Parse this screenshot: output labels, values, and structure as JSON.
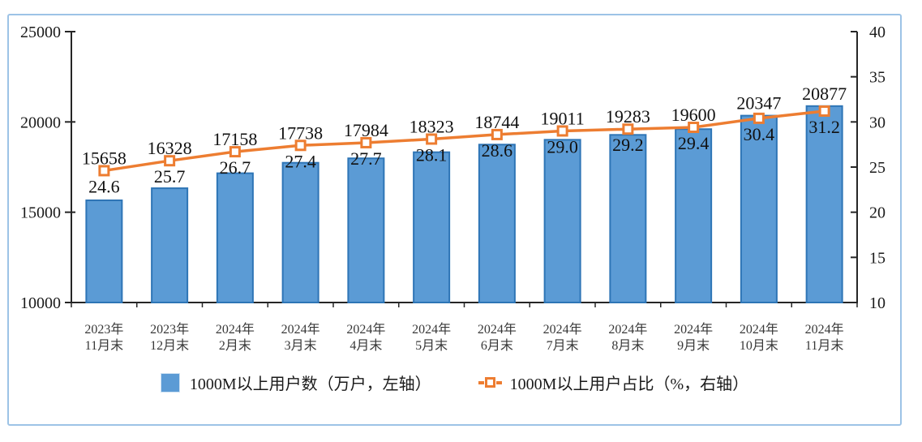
{
  "frame": {
    "border_color": "#9DC3E6",
    "background": "#FFFFFF"
  },
  "chart_data": {
    "type": "bar",
    "combo": "bar+line",
    "title": "",
    "xlabel": "",
    "ylabel_left": "万户",
    "ylabel_right": "%",
    "grid": false,
    "legend_position": "bottom",
    "categories": [
      {
        "line1": "2023年",
        "line2": "11月末"
      },
      {
        "line1": "2023年",
        "line2": "12月末"
      },
      {
        "line1": "2024年",
        "line2": "2月末"
      },
      {
        "line1": "2024年",
        "line2": "3月末"
      },
      {
        "line1": "2024年",
        "line2": "4月末"
      },
      {
        "line1": "2024年",
        "line2": "5月末"
      },
      {
        "line1": "2024年",
        "line2": "6月末"
      },
      {
        "line1": "2024年",
        "line2": "7月末"
      },
      {
        "line1": "2024年",
        "line2": "8月末"
      },
      {
        "line1": "2024年",
        "line2": "9月末"
      },
      {
        "line1": "2024年",
        "line2": "10月末"
      },
      {
        "line1": "2024年",
        "line2": "11月末"
      }
    ],
    "series": [
      {
        "name": "1000M以上用户数（万户，左轴）",
        "type": "bar",
        "axis": "left",
        "values": [
          15658,
          16328,
          17158,
          17738,
          17984,
          18323,
          18744,
          19011,
          19283,
          19600,
          20347,
          20877
        ],
        "labels": [
          "15658",
          "16328",
          "17158",
          "17738",
          "17984",
          "18323",
          "18744",
          "19011",
          "19283",
          "19600",
          "20347",
          "20877"
        ],
        "fill": "#5B9BD5",
        "stroke": "#2E75B6"
      },
      {
        "name": "1000M以上用户占比（%，右轴）",
        "type": "line",
        "axis": "right",
        "values": [
          24.6,
          25.7,
          26.7,
          27.4,
          27.7,
          28.1,
          28.6,
          29.0,
          29.2,
          29.4,
          30.4,
          31.2
        ],
        "labels": [
          "24.6",
          "25.7",
          "26.7",
          "27.4",
          "27.7",
          "28.1",
          "28.6",
          "29.0",
          "29.2",
          "29.4",
          "30.4",
          "31.2"
        ],
        "color": "#ED7D31",
        "marker": "square-hollow"
      }
    ],
    "left_axis": {
      "min": 10000,
      "max": 25000,
      "tick_labels": [
        "10000",
        "15000",
        "20000",
        "25000"
      ]
    },
    "right_axis": {
      "min": 10,
      "max": 40,
      "tick_labels": [
        "10",
        "15",
        "20",
        "25",
        "30",
        "35",
        "40"
      ]
    }
  }
}
